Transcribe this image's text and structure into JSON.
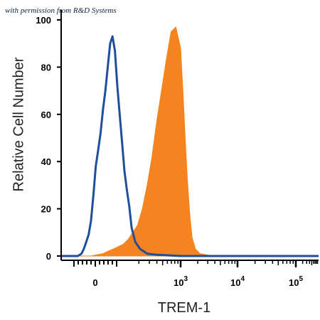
{
  "watermark": "with permission from R&D Systems",
  "chart_data": {
    "type": "histogram",
    "ylabel": "Relative Cell Number",
    "xlabel": "TREM-1",
    "ylim": [
      0,
      100
    ],
    "yticks": [
      0,
      20,
      40,
      60,
      80,
      100
    ],
    "xscale": "biexponential",
    "xticks": [
      {
        "label_base": "0",
        "label_exp": ""
      },
      {
        "label_base": "10",
        "label_exp": "3"
      },
      {
        "label_base": "10",
        "label_exp": "4"
      },
      {
        "label_base": "10",
        "label_exp": "5"
      }
    ],
    "series": [
      {
        "style": "outline",
        "color": "#1f4f9c",
        "x": [
          0.0,
          0.08,
          0.14,
          0.17,
          0.19,
          0.21,
          0.23,
          0.25,
          0.27,
          0.29,
          0.31,
          0.33,
          0.35,
          0.37,
          0.39,
          0.41,
          0.43,
          0.45,
          0.47,
          0.49,
          0.51,
          0.53,
          0.55,
          0.57,
          0.59,
          0.62,
          0.66,
          0.72,
          0.8,
          1.0,
          2.0,
          4.1
        ],
        "y": [
          0,
          0,
          0,
          1,
          3,
          6,
          9,
          15,
          26,
          38,
          45,
          52,
          62,
          70,
          80,
          90,
          93,
          87,
          72,
          60,
          48,
          36,
          28,
          21,
          12,
          6,
          3,
          1,
          0.5,
          0,
          0,
          0
        ]
      },
      {
        "style": "filled",
        "color": "#f5831f",
        "x": [
          0.0,
          0.25,
          0.3,
          0.35,
          0.39,
          0.44,
          0.48,
          0.52,
          0.56,
          0.6,
          0.64,
          0.68,
          0.72,
          0.76,
          0.8,
          0.84,
          0.88,
          0.92,
          0.96,
          1.0,
          1.04,
          1.08,
          1.12,
          1.16,
          1.2,
          1.26,
          1.34,
          1.5,
          2.0,
          4.1
        ],
        "y": [
          0,
          0,
          0.5,
          1,
          2,
          3,
          4,
          5,
          7,
          10,
          13,
          20,
          30,
          42,
          57,
          70,
          83,
          95,
          97,
          88,
          70,
          50,
          32,
          18,
          8,
          3,
          1,
          0.3,
          0,
          0
        ]
      }
    ]
  }
}
